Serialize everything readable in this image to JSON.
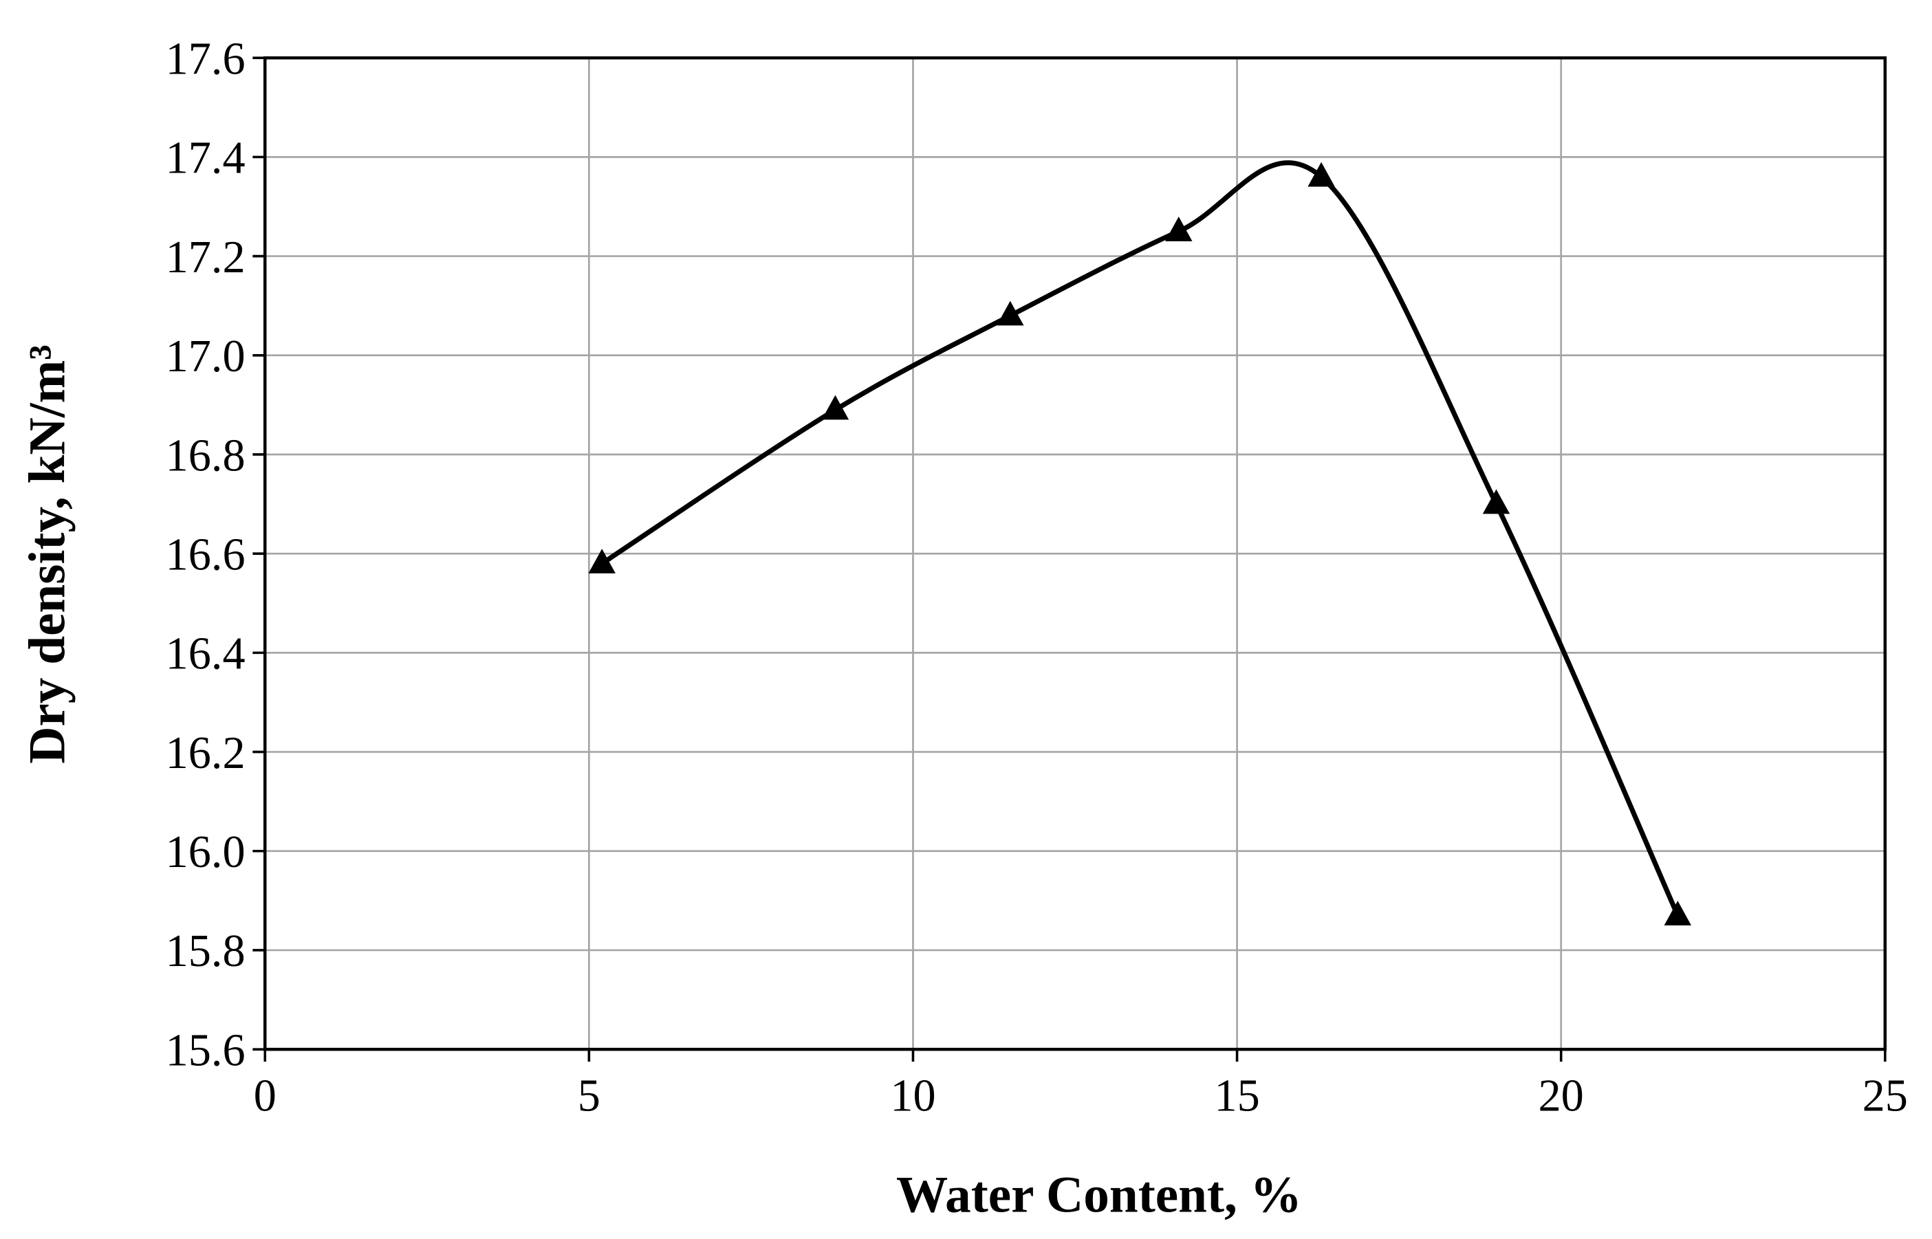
{
  "chart_data": {
    "type": "line",
    "x_label": "Water Content, %",
    "y_label": "Dry density,  kN/m³",
    "xlim": [
      0,
      25
    ],
    "xticks": [
      0,
      5,
      10,
      15,
      20,
      25
    ],
    "ylim": [
      15.6,
      17.6
    ],
    "yticks": [
      15.6,
      15.8,
      {
        "value": 16,
        "label": "16.0"
      },
      16.2,
      16.4,
      16.6,
      16.8,
      {
        "value": 17,
        "label": "17.0"
      },
      17.2,
      17.4,
      17.6
    ],
    "grid": true,
    "smooth": true,
    "marker": "triangle",
    "series": [
      {
        "color": "#000000",
        "x": [
          5.2,
          8.8,
          11.5,
          14.1,
          16.3,
          19.0,
          21.8
        ],
        "values": [
          16.58,
          16.89,
          17.08,
          17.25,
          17.36,
          16.7,
          15.87
        ]
      }
    ]
  }
}
